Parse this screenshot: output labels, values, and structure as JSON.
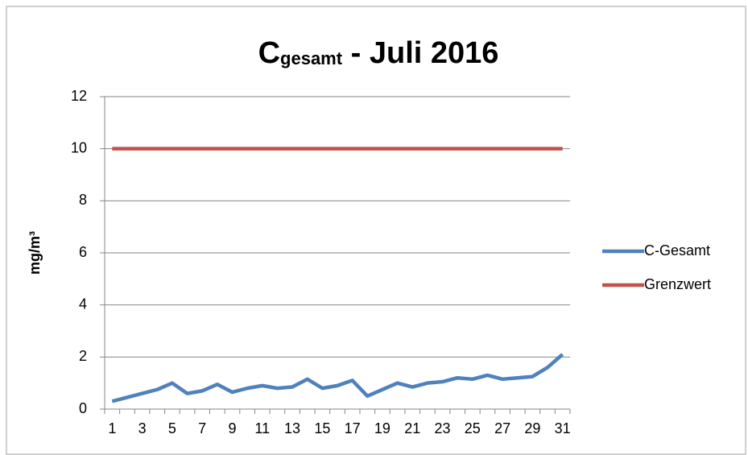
{
  "chart_data": {
    "type": "line",
    "title": [
      "C",
      "gesamt",
      " - Juli 2016"
    ],
    "y_label": "mg/m³",
    "categories": [
      "1",
      null,
      "3",
      null,
      "5",
      null,
      "7",
      null,
      "9",
      null,
      "11",
      null,
      "13",
      null,
      "15",
      null,
      "17",
      null,
      "19",
      null,
      "21",
      null,
      "23",
      null,
      "25",
      null,
      "27",
      null,
      "29",
      null,
      "31"
    ],
    "series": [
      {
        "name": "C-Gesamt",
        "color": "#4f81bd",
        "values": [
          0.3,
          0.45,
          0.6,
          0.75,
          1.0,
          0.6,
          0.7,
          0.95,
          0.65,
          0.8,
          0.9,
          0.8,
          0.85,
          1.15,
          0.8,
          0.9,
          1.1,
          0.5,
          0.75,
          1.0,
          0.85,
          1.0,
          1.05,
          1.2,
          1.15,
          1.3,
          1.15,
          1.2,
          1.25,
          1.6,
          2.1
        ]
      },
      {
        "name": "Grenzwert",
        "color": "#c0504d",
        "values": [
          10,
          10,
          10,
          10,
          10,
          10,
          10,
          10,
          10,
          10,
          10,
          10,
          10,
          10,
          10,
          10,
          10,
          10,
          10,
          10,
          10,
          10,
          10,
          10,
          10,
          10,
          10,
          10,
          10,
          10,
          10
        ]
      }
    ],
    "ylim": [
      0,
      12
    ],
    "yticks": [
      0,
      2,
      4,
      6,
      8,
      10,
      12
    ],
    "grid": true,
    "legend": "right"
  }
}
